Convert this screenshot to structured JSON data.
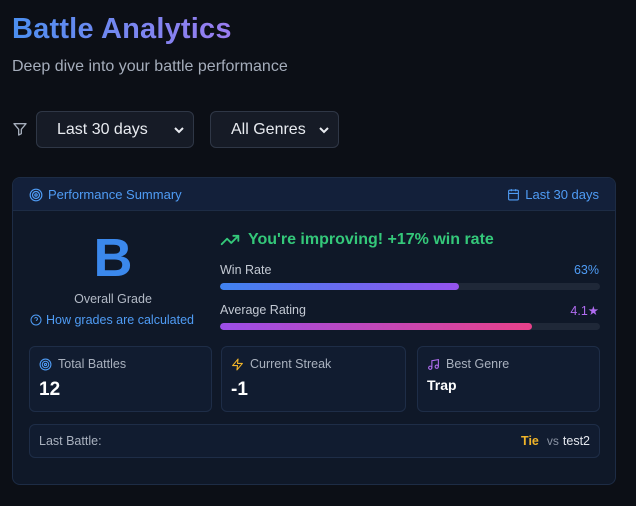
{
  "header": {
    "title": "Battle Analytics",
    "subtitle": "Deep dive into your battle performance"
  },
  "filters": {
    "period": {
      "selected": "Last 30 days"
    },
    "genre": {
      "selected": "All Genres"
    }
  },
  "summary": {
    "title": "Performance Summary",
    "period_label": "Last 30 days",
    "grade": "B",
    "grade_label": "Overall Grade",
    "grade_help": "How grades are calculated",
    "trend_text": "You're improving! +17% win rate",
    "win_rate": {
      "label": "Win Rate",
      "display": "63%",
      "value": 0.63
    },
    "avg_rating": {
      "label": "Average Rating",
      "display": "4.1★",
      "value": 4.1,
      "max": 5
    },
    "stats": {
      "total_battles": {
        "label": "Total Battles",
        "value": "12"
      },
      "current_streak": {
        "label": "Current Streak",
        "value": "-1"
      },
      "best_genre": {
        "label": "Best Genre",
        "value": "Trap"
      }
    },
    "last_battle": {
      "label": "Last Battle:",
      "result": "Tie",
      "vs": "vs",
      "opponent": "test2"
    }
  },
  "colors": {
    "accent_blue": "#4f9cf5",
    "success_green": "#34c87a",
    "tie_yellow": "#f0b429",
    "rating_purple": "#b06cf0"
  }
}
